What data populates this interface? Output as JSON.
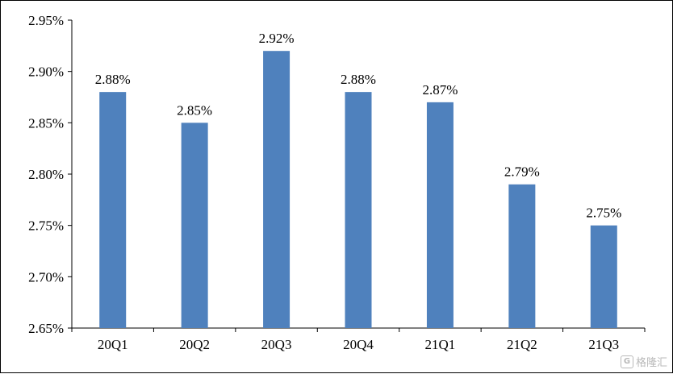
{
  "chart_data": {
    "type": "bar",
    "categories": [
      "20Q1",
      "20Q2",
      "20Q3",
      "20Q4",
      "21Q1",
      "21Q2",
      "21Q3"
    ],
    "values": [
      2.88,
      2.85,
      2.92,
      2.88,
      2.87,
      2.79,
      2.75
    ],
    "data_labels": [
      "2.88%",
      "2.85%",
      "2.92%",
      "2.88%",
      "2.87%",
      "2.79%",
      "2.75%"
    ],
    "yticks": [
      2.65,
      2.7,
      2.75,
      2.8,
      2.85,
      2.9,
      2.95
    ],
    "ytick_labels": [
      "2.65%",
      "2.70%",
      "2.75%",
      "2.80%",
      "2.85%",
      "2.90%",
      "2.95%"
    ],
    "ylim": [
      2.65,
      2.95
    ],
    "title": "",
    "xlabel": "",
    "ylabel": "",
    "grid": false,
    "bar_color": "#4f81bd"
  },
  "watermark": {
    "icon": "g-logo-icon",
    "logo_text": "G",
    "text": "格隆汇"
  }
}
